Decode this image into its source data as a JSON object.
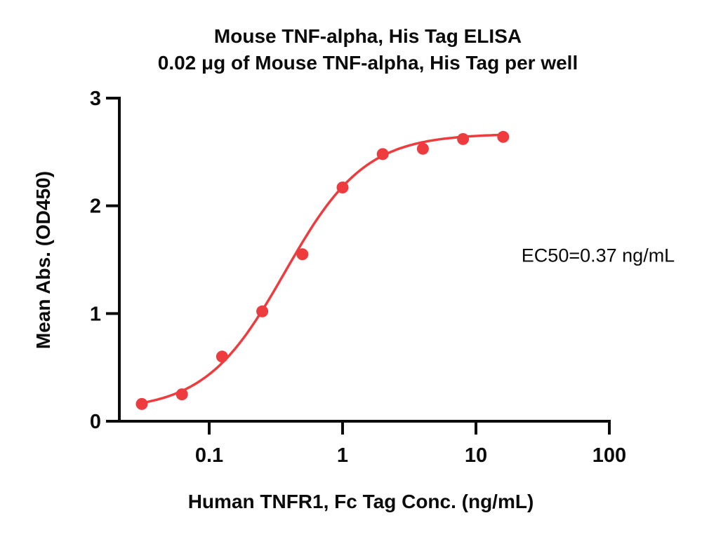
{
  "figure": {
    "title_line1": "Mouse TNF-alpha, His Tag ELISA",
    "title_line2": "0.02 μg of Mouse TNF-alpha, His Tag per well",
    "annotation": "EC50=0.37 ng/mL"
  },
  "colors": {
    "series_red": "#ee3b3e",
    "axis_black": "#0b0b0b",
    "background": "#ffffff"
  },
  "chart_data": {
    "type": "scatter",
    "subtype": "dose-response-4PL",
    "title": "Mouse TNF-alpha, His Tag ELISA",
    "subtitle": "0.02 μg of Mouse TNF-alpha, His Tag per well",
    "xlabel": "Human TNFR1, Fc Tag Conc. (ng/mL)",
    "ylabel": "Mean Abs. (OD450)",
    "x_scale": "log10",
    "xlim_data": [
      0.03125,
      16
    ],
    "ylim": [
      0,
      3
    ],
    "x_ticks": [
      0.1,
      1,
      10,
      100
    ],
    "x_tick_labels": [
      "0.1",
      "1",
      "10",
      "100"
    ],
    "y_ticks": [
      0,
      1,
      2,
      3
    ],
    "y_tick_labels": [
      "0",
      "1",
      "2",
      "3"
    ],
    "grid": false,
    "legend": "none",
    "annotation": "EC50=0.37 ng/mL",
    "ec50_ng_ml": 0.37,
    "series": [
      {
        "name": "Mouse TNF-alpha, His Tag",
        "marker": "circle",
        "color": "#ee3b3e",
        "x": [
          0.03125,
          0.0625,
          0.125,
          0.25,
          0.5,
          1,
          2,
          4,
          8,
          16
        ],
        "y": [
          0.16,
          0.25,
          0.6,
          1.02,
          1.55,
          2.17,
          2.48,
          2.53,
          2.62,
          2.64
        ]
      }
    ],
    "fit": {
      "model": "4PL",
      "bottom": 0.1,
      "top": 2.67,
      "ec50": 0.37,
      "hill": 1.45
    }
  }
}
